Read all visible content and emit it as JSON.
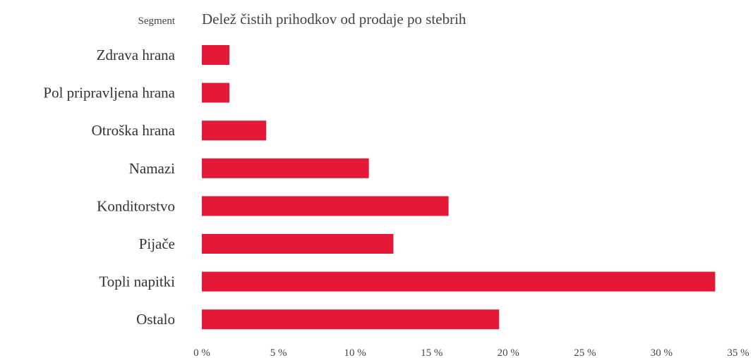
{
  "chart_data": {
    "type": "bar",
    "orientation": "horizontal",
    "title": "Delež čistih prihodkov od prodaje po stebrih",
    "category_header": "Segment",
    "categories": [
      "Zdrava hrana",
      "Pol pripravljena hrana",
      "Otroška hrana",
      "Namazi",
      "Konditorstvo",
      "Pijače",
      "Topli napitki",
      "Ostalo"
    ],
    "values": [
      1.8,
      1.8,
      4.2,
      10.9,
      16.1,
      12.5,
      33.5,
      19.4
    ],
    "xlim": [
      0,
      35
    ],
    "xticks": [
      0,
      5,
      10,
      15,
      20,
      25,
      30,
      35
    ],
    "tick_labels": [
      "0 %",
      "5 %",
      "10 %",
      "15 %",
      "20 %",
      "25 %",
      "30 %",
      "35 %"
    ],
    "bar_color": "#e31937",
    "grid": false,
    "legend": "none"
  }
}
